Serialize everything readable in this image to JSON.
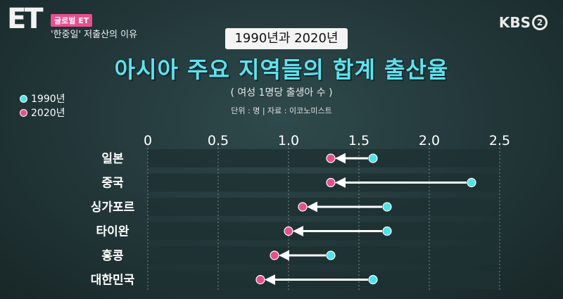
{
  "header": {
    "logo": "ET",
    "badge": "글로벌 ET",
    "subtitle": "'한중일' 저출산의 이유",
    "channel": "KBS",
    "channel_mark": "2"
  },
  "colors": {
    "y1990": "#4fe3e8",
    "y2020": "#e5508c",
    "title": "#5de4ea"
  },
  "chart_data": {
    "type": "dumbbell",
    "title_box": "1990년과 2020년",
    "title": "아시아 주요 지역들의 합계 출산율",
    "subtitle": "( 여성 1명당 출생아 수 )",
    "source": "단위 : 명  |  자료 : 이코노미스트",
    "xlim": [
      0,
      2.5
    ],
    "x_ticks": [
      "0",
      "0.5",
      "1.0",
      "1.5",
      "2.0",
      "2.5"
    ],
    "x_tick_values": [
      0,
      0.5,
      1.0,
      1.5,
      2.0,
      2.5
    ],
    "legend_position": "top-left",
    "categories": [
      "일본",
      "중국",
      "싱가포르",
      "타이완",
      "홍콩",
      "대한민국"
    ],
    "series": [
      {
        "name": "1990년",
        "values": [
          1.6,
          2.3,
          1.7,
          1.7,
          1.3,
          1.6
        ]
      },
      {
        "name": "2020년",
        "values": [
          1.3,
          1.3,
          1.1,
          1.0,
          0.9,
          0.8
        ]
      }
    ]
  }
}
